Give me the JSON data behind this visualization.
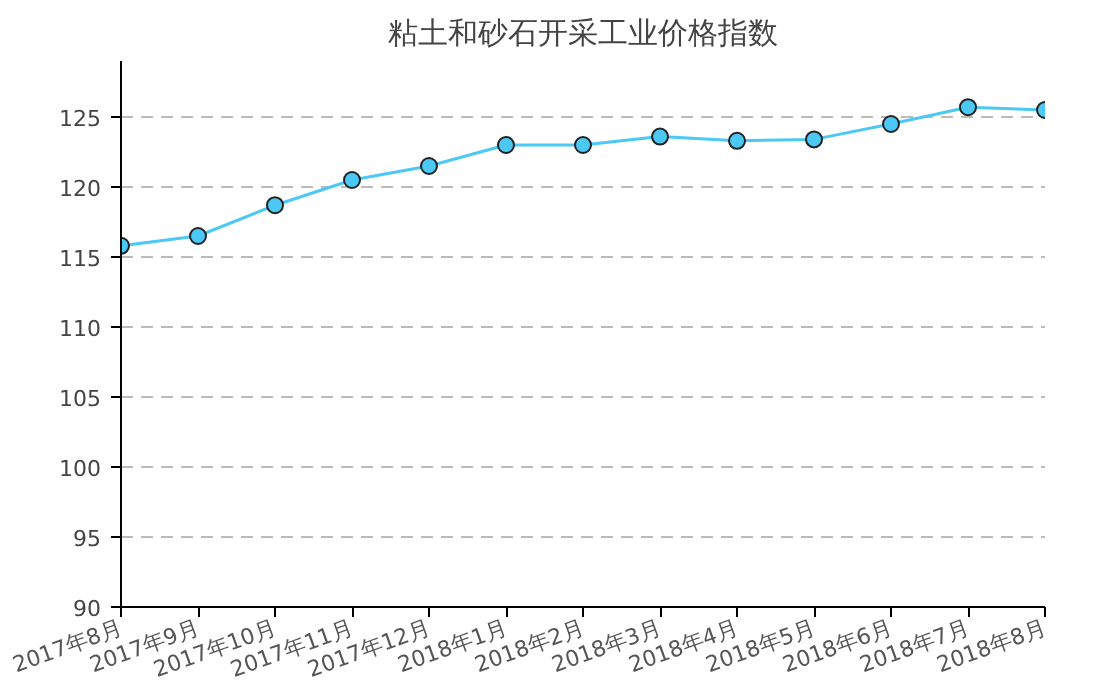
{
  "chart_data": {
    "type": "line",
    "title": "粘土和砂石开采工业价格指数",
    "categories": [
      "2017年8月",
      "2017年9月",
      "2017年10月",
      "2017年11月",
      "2017年12月",
      "2018年1月",
      "2018年2月",
      "2018年3月",
      "2018年4月",
      "2018年5月",
      "2018年6月",
      "2018年7月",
      "2018年8月"
    ],
    "series": [
      {
        "color": "#4cc8f4",
        "values": [
          115.8,
          116.5,
          118.7,
          120.5,
          121.5,
          123.0,
          123.0,
          123.6,
          123.3,
          123.4,
          124.5,
          125.7,
          125.5
        ]
      }
    ],
    "ylim": [
      90,
      129
    ],
    "yticks": [
      90,
      95,
      100,
      105,
      110,
      115,
      120,
      125
    ],
    "grid": "y",
    "marker": "circle",
    "line_style": "solid"
  }
}
